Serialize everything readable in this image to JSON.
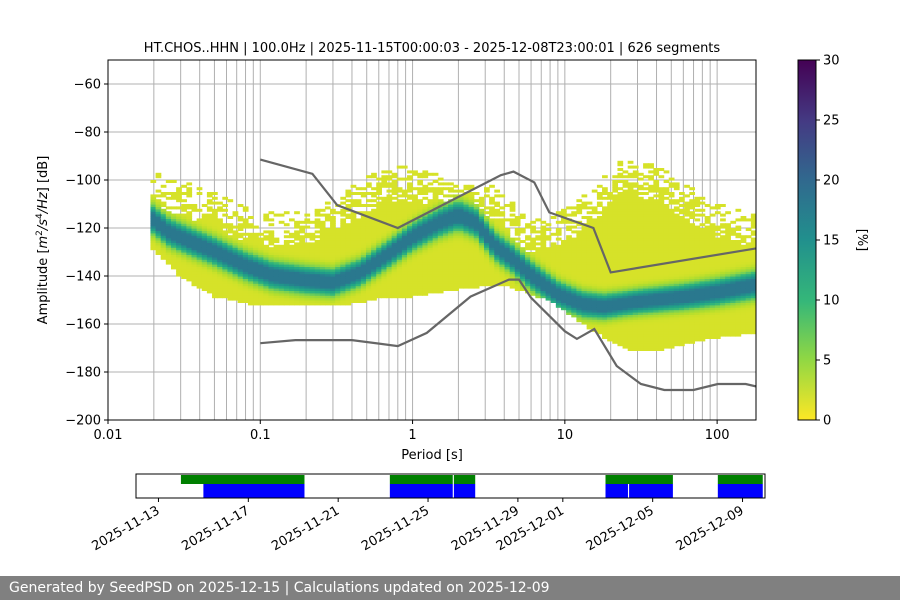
{
  "chart_data": {
    "type": "heatmap",
    "title": "HT.CHOS..HHN | 100.0Hz | 2025-11-15T00:00:03 - 2025-12-08T23:00:01 | 626 segments",
    "xlabel": "Period [s]",
    "ylabel": "Amplitude [m²/s⁴/Hz] [dB]",
    "x_scale": "log",
    "xlim": [
      0.01,
      180
    ],
    "ylim": [
      -200,
      -50
    ],
    "x_ticks": [
      {
        "value": 0.01,
        "label": "0.01"
      },
      {
        "value": 0.1,
        "label": "0.1"
      },
      {
        "value": 1,
        "label": "1"
      },
      {
        "value": 10,
        "label": "10"
      },
      {
        "value": 100,
        "label": "100"
      }
    ],
    "y_ticks": [
      {
        "value": -60,
        "label": "−60"
      },
      {
        "value": -80,
        "label": "−80"
      },
      {
        "value": -100,
        "label": "−100"
      },
      {
        "value": -120,
        "label": "−120"
      },
      {
        "value": -140,
        "label": "−140"
      },
      {
        "value": -160,
        "label": "−160"
      },
      {
        "value": -180,
        "label": "−180"
      },
      {
        "value": -200,
        "label": "−200"
      }
    ],
    "grid": true,
    "colorbar": {
      "label": "[%]",
      "range": [
        0,
        30
      ],
      "ticks": [
        {
          "value": 0,
          "label": "0"
        },
        {
          "value": 5,
          "label": "5"
        },
        {
          "value": 10,
          "label": "10"
        },
        {
          "value": 15,
          "label": "15"
        },
        {
          "value": 20,
          "label": "20"
        },
        {
          "value": 25,
          "label": "25"
        },
        {
          "value": 30,
          "label": "30"
        }
      ],
      "colormap": "viridis_r"
    },
    "psd_density": {
      "period_range": [
        0.019,
        180
      ],
      "mode_curve": [
        [
          0.019,
          -116
        ],
        [
          0.025,
          -122
        ],
        [
          0.035,
          -126
        ],
        [
          0.05,
          -130
        ],
        [
          0.08,
          -136
        ],
        [
          0.12,
          -140
        ],
        [
          0.2,
          -142
        ],
        [
          0.3,
          -143
        ],
        [
          0.45,
          -139
        ],
        [
          0.7,
          -131
        ],
        [
          1.0,
          -124
        ],
        [
          1.5,
          -118
        ],
        [
          2.0,
          -115
        ],
        [
          2.6,
          -118
        ],
        [
          3.5,
          -128
        ],
        [
          4.5,
          -133
        ],
        [
          6,
          -140
        ],
        [
          9,
          -148
        ],
        [
          13,
          -152
        ],
        [
          18,
          -153
        ],
        [
          30,
          -151
        ],
        [
          60,
          -149
        ],
        [
          100,
          -147
        ],
        [
          180,
          -144
        ]
      ],
      "envelope_low": [
        [
          0.019,
          -127
        ],
        [
          0.03,
          -140
        ],
        [
          0.05,
          -148
        ],
        [
          0.1,
          -152
        ],
        [
          0.3,
          -152
        ],
        [
          0.6,
          -149
        ],
        [
          1,
          -148
        ],
        [
          2,
          -145
        ],
        [
          4,
          -143
        ],
        [
          8,
          -150
        ],
        [
          15,
          -162
        ],
        [
          25,
          -170
        ],
        [
          40,
          -171
        ],
        [
          80,
          -166
        ],
        [
          180,
          -163
        ]
      ],
      "envelope_high": [
        [
          0.019,
          -98
        ],
        [
          0.05,
          -106
        ],
        [
          0.1,
          -115
        ],
        [
          0.2,
          -114
        ],
        [
          0.4,
          -104
        ],
        [
          0.7,
          -95
        ],
        [
          1.2,
          -97
        ],
        [
          2,
          -102
        ],
        [
          3.5,
          -104
        ],
        [
          6,
          -118
        ],
        [
          12,
          -110
        ],
        [
          25,
          -91
        ],
        [
          45,
          -97
        ],
        [
          90,
          -110
        ],
        [
          180,
          -116
        ]
      ]
    },
    "noise_models": [
      {
        "model": "high",
        "points": [
          [
            0.1,
            -91.5
          ],
          [
            0.22,
            -97.4
          ],
          [
            0.32,
            -110.5
          ],
          [
            0.8,
            -120
          ],
          [
            3.8,
            -98
          ],
          [
            4.6,
            -96.5
          ],
          [
            6.3,
            -101
          ],
          [
            7.9,
            -113.5
          ],
          [
            15.4,
            -120
          ],
          [
            20,
            -138.5
          ],
          [
            180,
            -128.5
          ]
        ]
      },
      {
        "model": "low",
        "points": [
          [
            0.1,
            -168
          ],
          [
            0.17,
            -166.7
          ],
          [
            0.4,
            -166.7
          ],
          [
            0.8,
            -169.2
          ],
          [
            1.24,
            -163.7
          ],
          [
            2.4,
            -148.6
          ],
          [
            4.3,
            -141.5
          ],
          [
            5.0,
            -141.5
          ],
          [
            6.0,
            -149.1
          ],
          [
            10,
            -163
          ],
          [
            12,
            -166.2
          ],
          [
            15.6,
            -162.1
          ],
          [
            21.9,
            -177.5
          ],
          [
            31.6,
            -185
          ],
          [
            45,
            -187.5
          ],
          [
            70,
            -187.5
          ],
          [
            101,
            -185
          ],
          [
            154,
            -185
          ],
          [
            180,
            -186
          ]
        ]
      }
    ]
  },
  "coverage": {
    "date_ticks": [
      "2025-11-13",
      "2025-11-17",
      "2025-11-21",
      "2025-11-25",
      "2025-11-29",
      "2025-12-01",
      "2025-12-05",
      "2025-12-09"
    ],
    "green_color": "#008000",
    "blue_color": "#0000ff",
    "green_ranges": [
      [
        "2025-11-14",
        "2025-11-19.5"
      ],
      [
        "2025-11-23.3",
        "2025-11-26.1"
      ],
      [
        "2025-11-26.15",
        "2025-11-27.1"
      ],
      [
        "2025-12-02.9",
        "2025-12-05.9"
      ],
      [
        "2025-12-07.9",
        "2025-12-09.9"
      ]
    ],
    "blue_ranges": [
      [
        "2025-11-15",
        "2025-11-19.5"
      ],
      [
        "2025-11-23.3",
        "2025-11-26.1"
      ],
      [
        "2025-11-26.15",
        "2025-11-27.1"
      ],
      [
        "2025-12-02.9",
        "2025-12-03.9"
      ],
      [
        "2025-12-03.95",
        "2025-12-05.9"
      ],
      [
        "2025-12-07.9",
        "2025-12-09.9"
      ]
    ]
  },
  "footer": {
    "text": "Generated by SeedPSD on 2025-12-15 | Calculations updated on 2025-12-09"
  }
}
